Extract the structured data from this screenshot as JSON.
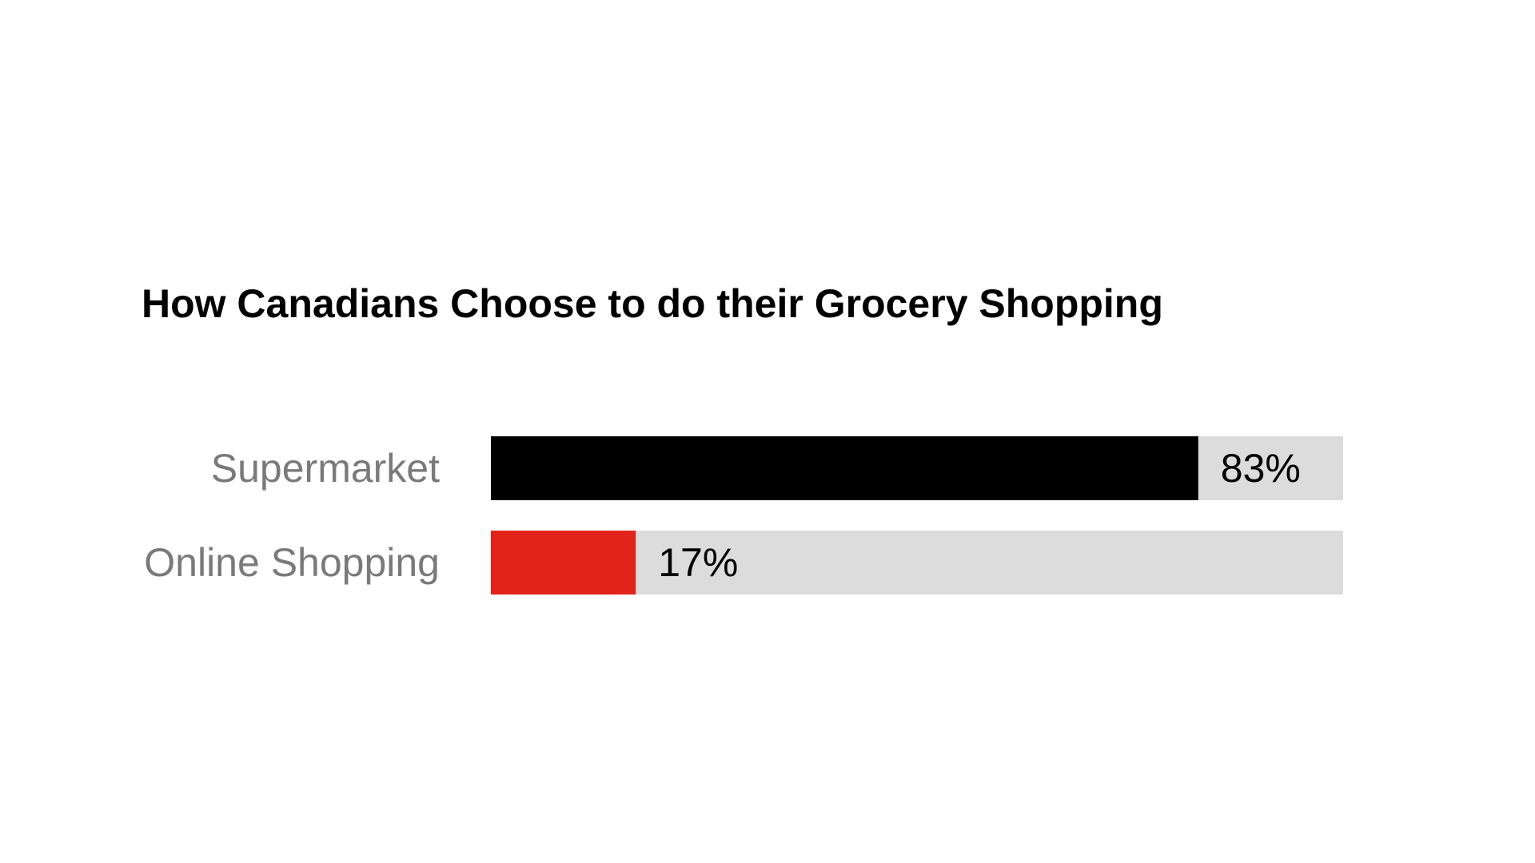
{
  "chart_data": {
    "type": "bar",
    "orientation": "horizontal",
    "title": "How Canadians Choose to do their Grocery Shopping",
    "categories": [
      "Supermarket",
      "Online Shopping"
    ],
    "values": [
      83,
      17
    ],
    "value_labels": [
      "83%",
      "17%"
    ],
    "xlim": [
      0,
      100
    ],
    "grid": false,
    "legend": "none",
    "colors": {
      "bars": [
        "#000000",
        "#e2231a"
      ],
      "track": "#dcdcdc",
      "category_text": "#7a7a7a",
      "value_text": "#000000",
      "title_text": "#000000"
    }
  }
}
